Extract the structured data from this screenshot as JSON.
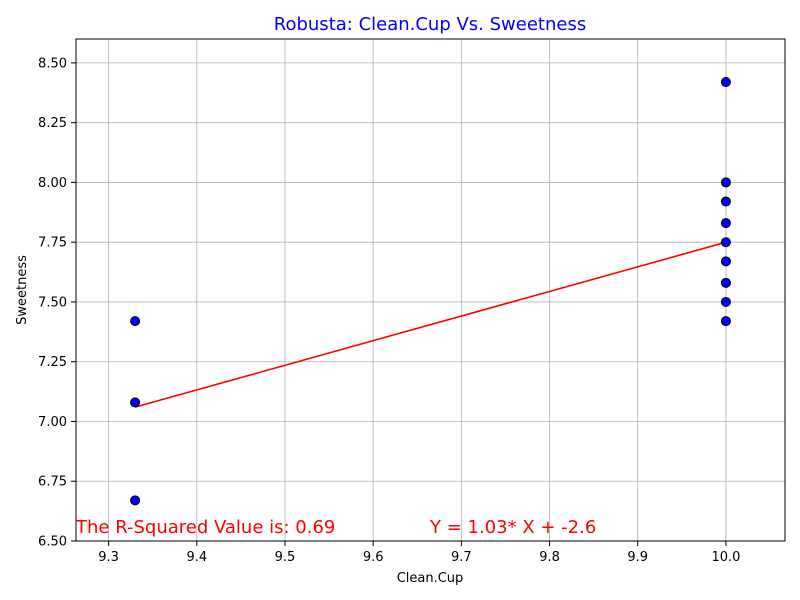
{
  "chart_data": {
    "type": "scatter",
    "title": "Robusta: Clean.Cup Vs. Sweetness",
    "xlabel": "Clean.Cup",
    "ylabel": "Sweetness",
    "xlim": [
      9.263,
      10.067
    ],
    "ylim": [
      6.5,
      8.6
    ],
    "xticks": [
      9.3,
      9.4,
      9.5,
      9.6,
      9.7,
      9.8,
      9.9,
      10.0
    ],
    "xtick_labels": [
      "9.3",
      "9.4",
      "9.5",
      "9.6",
      "9.7",
      "9.8",
      "9.9",
      "10.0"
    ],
    "yticks": [
      6.5,
      6.75,
      7.0,
      7.25,
      7.5,
      7.75,
      8.0,
      8.25,
      8.5
    ],
    "ytick_labels": [
      "6.50",
      "6.75",
      "7.00",
      "7.25",
      "7.50",
      "7.75",
      "8.00",
      "8.25",
      "8.50"
    ],
    "grid": true,
    "points": [
      {
        "x": 9.33,
        "y": 7.42
      },
      {
        "x": 9.33,
        "y": 7.08
      },
      {
        "x": 9.33,
        "y": 6.67
      },
      {
        "x": 10.0,
        "y": 8.42
      },
      {
        "x": 10.0,
        "y": 8.0
      },
      {
        "x": 10.0,
        "y": 7.92
      },
      {
        "x": 10.0,
        "y": 7.83
      },
      {
        "x": 10.0,
        "y": 7.75
      },
      {
        "x": 10.0,
        "y": 7.67
      },
      {
        "x": 10.0,
        "y": 7.58
      },
      {
        "x": 10.0,
        "y": 7.5
      },
      {
        "x": 10.0,
        "y": 7.42
      }
    ],
    "regression": {
      "x": [
        9.33,
        10.0
      ],
      "y": [
        7.06,
        7.75
      ]
    },
    "annotations": {
      "r_squared": "The R-Squared Value is: 0.69",
      "equation": "Y = 1.03* X + -2.6"
    },
    "colors": {
      "title": "#0000ff",
      "points_fill": "#0000ff",
      "points_edge": "#000000",
      "regression": "#ff0000",
      "annotation": "#ff0000",
      "grid": "#b0b0b0"
    }
  }
}
